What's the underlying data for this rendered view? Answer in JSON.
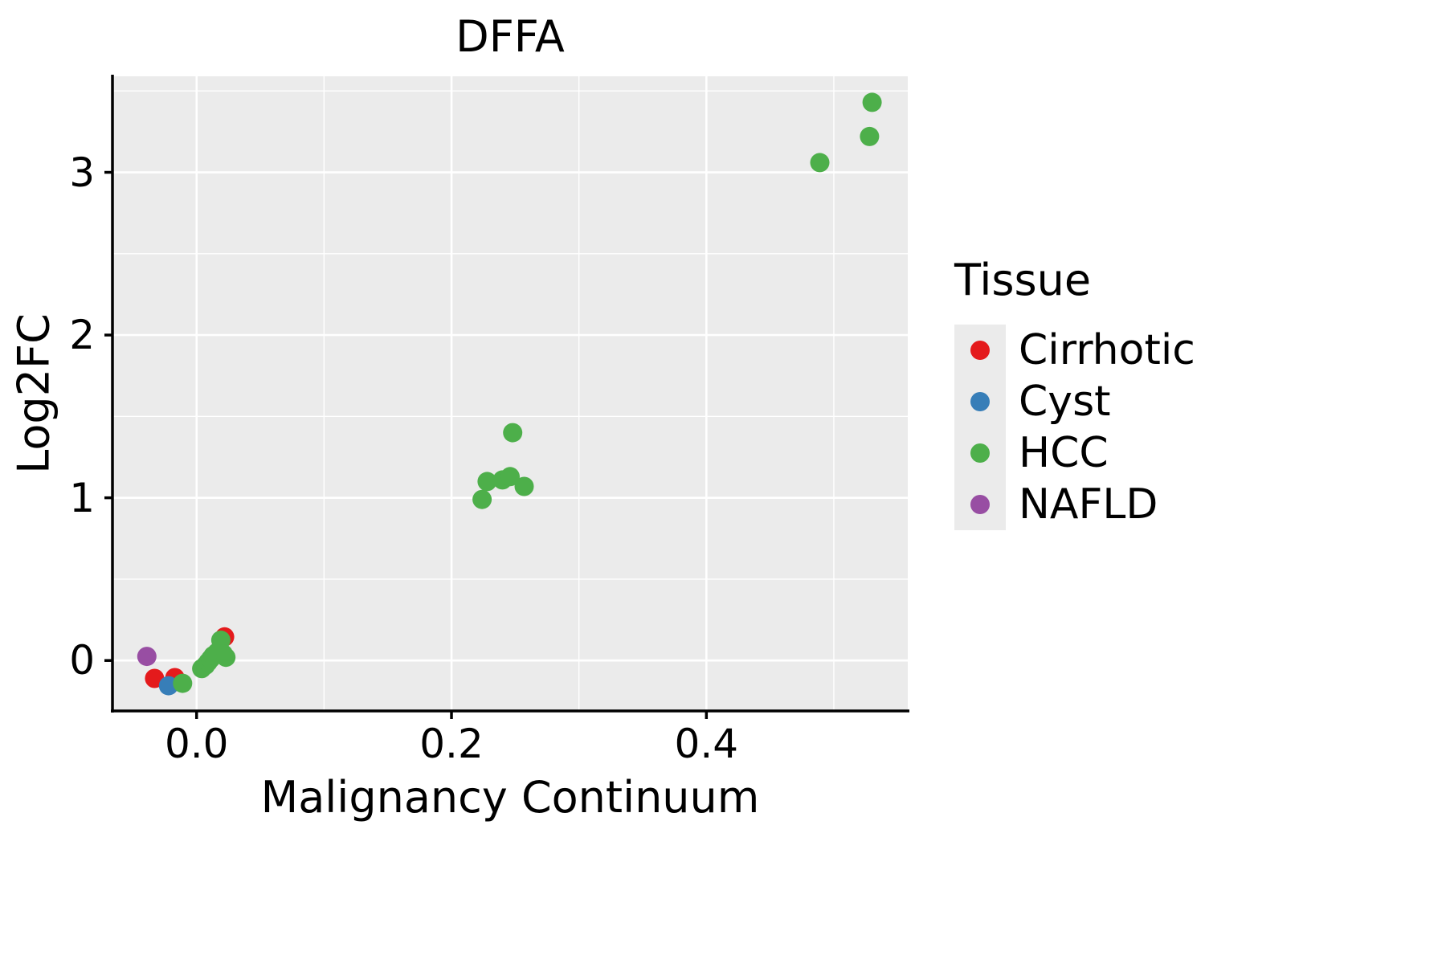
{
  "figure": {
    "title": "DFFA",
    "xlabel": "Malignancy Continuum",
    "ylabel": "Log2FC",
    "legend_title": "Tissue",
    "panel_background": "#EBEBEB",
    "gridline_color": "#FFFFFF",
    "axis_color": "#000000"
  },
  "chart_data": {
    "type": "scatter",
    "title": "DFFA",
    "xlabel": "Malignancy Continuum",
    "ylabel": "Log2FC",
    "legend_title": "Tissue",
    "legend_position": "right",
    "grid": true,
    "xlim": [
      -0.066,
      0.558
    ],
    "ylim": [
      -0.31,
      3.59
    ],
    "x_ticks": [
      0.0,
      0.2,
      0.4
    ],
    "x_tick_labels": [
      "0.0",
      "0.2",
      "0.4"
    ],
    "y_ticks": [
      0,
      1,
      2,
      3
    ],
    "y_tick_labels": [
      "0",
      "1",
      "2",
      "3"
    ],
    "x_minor_ticks": [
      0.1,
      0.3,
      0.5
    ],
    "y_minor_ticks": [
      0.5,
      1.5,
      2.5,
      3.5
    ],
    "series": [
      {
        "name": "Cirrhotic",
        "color": "#e41a1c",
        "points": [
          [
            -0.033,
            -0.11
          ],
          [
            -0.017,
            -0.105
          ],
          [
            0.022,
            0.145
          ]
        ]
      },
      {
        "name": "Cyst",
        "color": "#377eb8",
        "points": [
          [
            -0.022,
            -0.155
          ]
        ]
      },
      {
        "name": "HCC",
        "color": "#4daf4a",
        "points": [
          [
            -0.011,
            -0.14
          ],
          [
            0.004,
            -0.05
          ],
          [
            0.007,
            -0.03
          ],
          [
            0.009,
            -0.01
          ],
          [
            0.011,
            0.01
          ],
          [
            0.013,
            0.03
          ],
          [
            0.016,
            0.05
          ],
          [
            0.019,
            0.125
          ],
          [
            0.021,
            0.04
          ],
          [
            0.023,
            0.02
          ],
          [
            0.224,
            0.99
          ],
          [
            0.228,
            1.1
          ],
          [
            0.24,
            1.11
          ],
          [
            0.246,
            1.13
          ],
          [
            0.248,
            1.4
          ],
          [
            0.257,
            1.07
          ],
          [
            0.489,
            3.06
          ],
          [
            0.528,
            3.22
          ],
          [
            0.53,
            3.43
          ]
        ]
      },
      {
        "name": "NAFLD",
        "color": "#984ea3",
        "points": [
          [
            -0.039,
            0.025
          ]
        ]
      }
    ]
  }
}
